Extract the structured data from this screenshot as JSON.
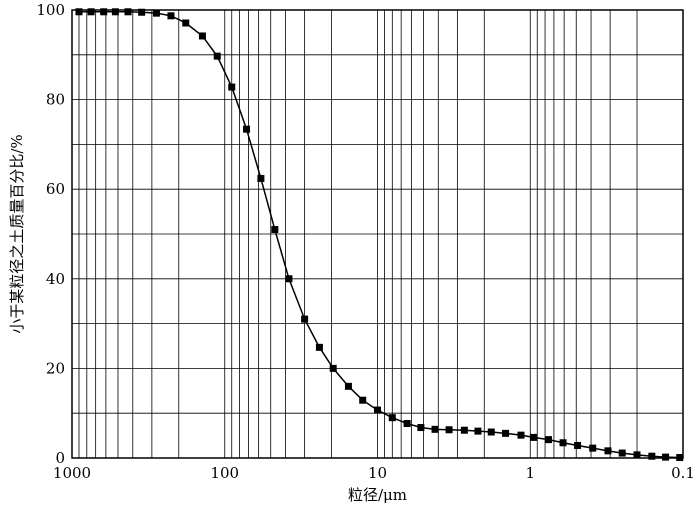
{
  "chart_data": {
    "type": "line",
    "title": "",
    "xlabel": "粒径/μm",
    "ylabel": "小于某粒径之土质量百分比/%",
    "x_scale": "log",
    "x_reversed": true,
    "xlim": [
      1000,
      0.1
    ],
    "ylim": [
      0,
      100
    ],
    "grid": true,
    "legend": "none",
    "x_ticks": [
      1000,
      100,
      10,
      1,
      0.1
    ],
    "x_tick_labels": [
      "1000",
      "100",
      "10",
      "1",
      "0.1"
    ],
    "y_ticks": [
      0,
      20,
      40,
      60,
      80,
      100
    ],
    "y_tick_labels": [
      "0",
      "20",
      "40",
      "60",
      "80",
      "100"
    ],
    "series": [
      {
        "marker": "square",
        "color": "#000000",
        "x": [
          900,
          750,
          620,
          520,
          430,
          350,
          280,
          225,
          180,
          140,
          112,
          90,
          72,
          58,
          47,
          38,
          30,
          24,
          19.5,
          15.5,
          12.5,
          10,
          8,
          6.4,
          5.2,
          4.2,
          3.4,
          2.7,
          2.2,
          1.8,
          1.45,
          1.15,
          0.95,
          0.76,
          0.61,
          0.49,
          0.39,
          0.31,
          0.25,
          0.2,
          0.16,
          0.13,
          0.105
        ],
        "y": [
          99.6,
          99.6,
          99.6,
          99.6,
          99.6,
          99.5,
          99.3,
          98.7,
          97.1,
          94.2,
          89.7,
          82.8,
          73.4,
          62.4,
          51.0,
          40.0,
          31.0,
          24.7,
          20.0,
          16.0,
          12.9,
          10.7,
          9.0,
          7.7,
          6.8,
          6.4,
          6.3,
          6.2,
          6.0,
          5.8,
          5.5,
          5.1,
          4.6,
          4.1,
          3.4,
          2.8,
          2.2,
          1.6,
          1.1,
          0.7,
          0.4,
          0.2,
          0.1
        ]
      }
    ]
  }
}
